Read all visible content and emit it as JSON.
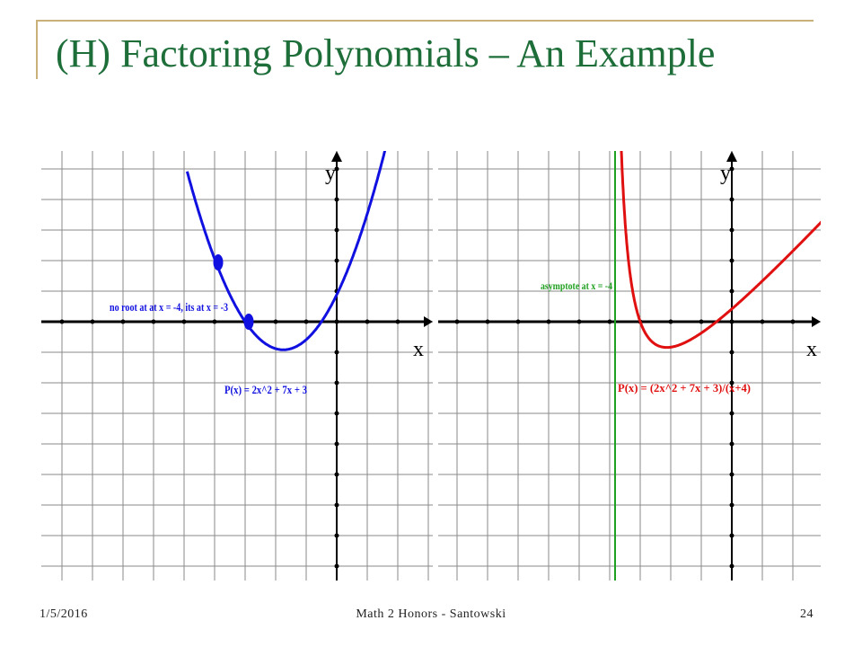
{
  "slide": {
    "title": "(H) Factoring Polynomials – An Example",
    "footer_date": "1/5/2016",
    "footer_center": "Math 2 Honors - Santowski",
    "footer_page": "24"
  },
  "colors": {
    "title": "#1e6e3a",
    "frame": "#c9b27a",
    "blue_curve": "#1010e0",
    "red_curve": "#e01010",
    "asymptote": "#20a020",
    "grid": "#8a8a8a"
  },
  "chart_data": [
    {
      "type": "line",
      "title": "",
      "xlabel": "x",
      "ylabel": "y",
      "grid": true,
      "series": [
        {
          "label": "P(x) = 2x^2 + 7x + 3",
          "expression": "2x^2 + 7x + 3"
        }
      ],
      "points": [
        {
          "x": -4,
          "y": 7
        },
        {
          "x": -3,
          "y": 0
        }
      ],
      "annotations": [
        "no root at at x = -4, its at x = -3",
        "P(x) = 2x^2 + 7x + 3"
      ]
    },
    {
      "type": "line",
      "title": "",
      "xlabel": "x",
      "ylabel": "y",
      "grid": true,
      "series": [
        {
          "label": "P(x) = (2x^2 + 7x + 3)/(x+4)",
          "expression": "(2x^2 + 7x + 3)/(x+4)"
        }
      ],
      "asymptote_x": -4,
      "annotations": [
        "asymptote at x = -4",
        "P(x) = (2x^2 + 7x + 3)/(x+4)"
      ]
    }
  ],
  "graph_left": {
    "y_label": "y",
    "x_label": "x",
    "annotation_root": "no root at at x = -4, its at x = -3",
    "annotation_func": "P(x) = 2x^2 + 7x + 3"
  },
  "graph_right": {
    "y_label": "y",
    "x_label": "x",
    "annotation_asymptote": "asymptote at x = -4",
    "annotation_func": "P(x) = (2x^2 + 7x + 3)/(x+4)"
  }
}
